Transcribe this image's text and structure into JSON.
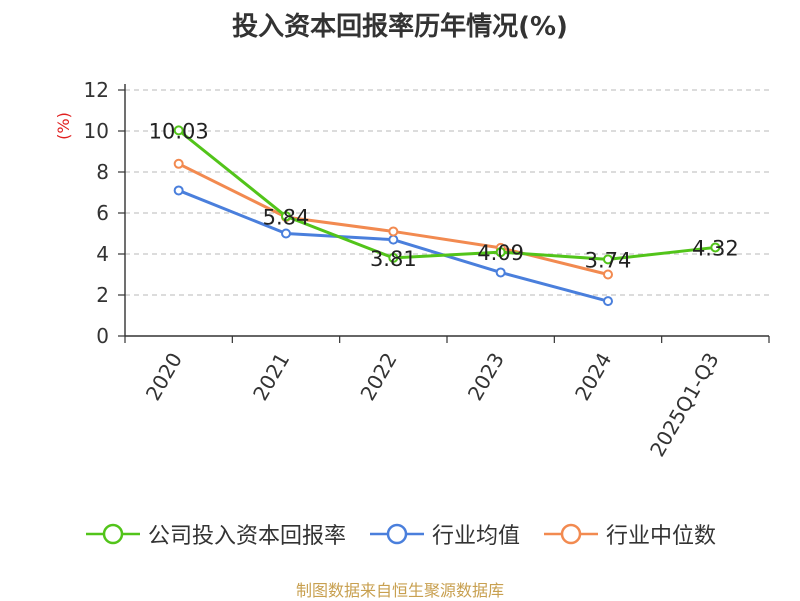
{
  "chart_data": {
    "type": "line",
    "title": "投入资本回报率历年情况(%)",
    "ylabel": "(%)",
    "xlabel": "",
    "categories": [
      "2020",
      "2021",
      "2022",
      "2023",
      "2024",
      "2025Q1-Q3"
    ],
    "ylim": [
      0,
      12
    ],
    "yticks": [
      0,
      2,
      4,
      6,
      8,
      10,
      12
    ],
    "grid": true,
    "legend_position": "bottom",
    "series": [
      {
        "name": "公司投入资本回报率",
        "color": "#52c41a",
        "values": [
          10.03,
          5.84,
          3.81,
          4.09,
          3.74,
          4.32
        ],
        "labels": [
          "10.03",
          "5.84",
          "3.81",
          "4.09",
          "3.74",
          "4.32"
        ]
      },
      {
        "name": "行业均值",
        "color": "#4a7fdc",
        "values": [
          7.1,
          5.0,
          4.7,
          3.1,
          1.7,
          null
        ]
      },
      {
        "name": "行业中位数",
        "color": "#f28a50",
        "values": [
          8.4,
          5.8,
          5.1,
          4.3,
          3.0,
          null
        ]
      }
    ]
  },
  "source": "制图数据来自恒生聚源数据库"
}
